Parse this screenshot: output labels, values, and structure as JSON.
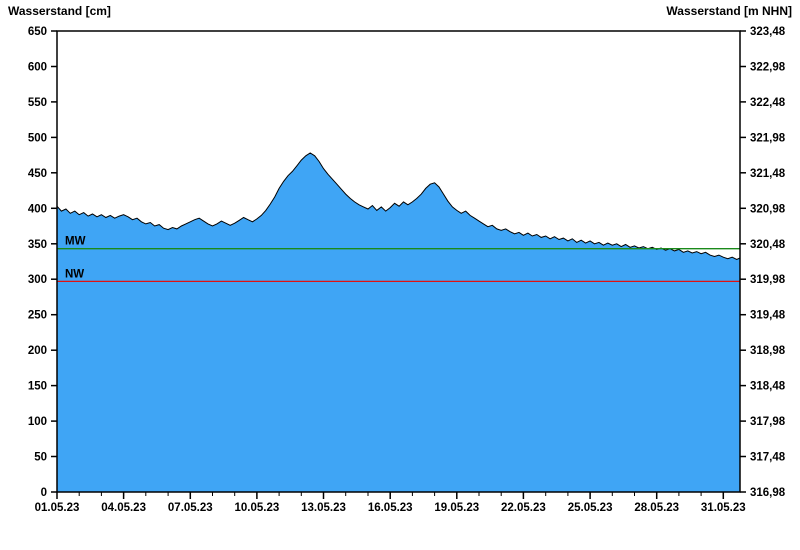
{
  "header": {
    "left_title": "Wasserstand [cm]",
    "right_title": "Wasserstand [m NHN]"
  },
  "chart_data": {
    "type": "area",
    "title": "",
    "xlabel": "",
    "ylabel_left": "Wasserstand [cm]",
    "ylabel_right": "Wasserstand [m NHN]",
    "grid": false,
    "legend": "none",
    "colors": {
      "fill": "#3FA5F5",
      "stroke": "#000000",
      "axis": "#000000",
      "mw_line": "#1a8a1a",
      "nw_line": "#e01212"
    },
    "x_axis": {
      "range_days": [
        1,
        31.75
      ],
      "tick_days": [
        1,
        4,
        7,
        10,
        13,
        16,
        19,
        22,
        25,
        28,
        31
      ],
      "tick_labels": [
        "01.05.23",
        "04.05.23",
        "07.05.23",
        "10.05.23",
        "13.05.23",
        "16.05.23",
        "19.05.23",
        "22.05.23",
        "25.05.23",
        "28.05.23",
        "31.05.23"
      ],
      "minor_tick_step_days": 1
    },
    "left_axis": {
      "range": [
        0,
        650
      ],
      "ticks": [
        0,
        50,
        100,
        150,
        200,
        250,
        300,
        350,
        400,
        450,
        500,
        550,
        600,
        650
      ]
    },
    "right_axis": {
      "range": [
        316.98,
        323.48
      ],
      "tick_labels": [
        "316,98",
        "317,48",
        "317,98",
        "318,48",
        "318,98",
        "319,48",
        "319,98",
        "320,48",
        "320,98",
        "321,48",
        "321,98",
        "322,48",
        "322,98",
        "323,48"
      ]
    },
    "reference_lines": [
      {
        "name": "MW",
        "value_cm": 343,
        "color": "#1a8a1a"
      },
      {
        "name": "NW",
        "value_cm": 297,
        "color": "#e01212"
      }
    ],
    "series": [
      {
        "name": "Wasserstand",
        "unit": "cm",
        "points": [
          [
            1,
            403
          ],
          [
            1.2,
            396
          ],
          [
            1.4,
            399
          ],
          [
            1.6,
            393
          ],
          [
            1.8,
            396
          ],
          [
            2,
            391
          ],
          [
            2.2,
            394
          ],
          [
            2.4,
            389
          ],
          [
            2.6,
            392
          ],
          [
            2.8,
            388
          ],
          [
            3,
            391
          ],
          [
            3.2,
            387
          ],
          [
            3.4,
            390
          ],
          [
            3.6,
            386
          ],
          [
            3.8,
            389
          ],
          [
            4,
            391
          ],
          [
            4.2,
            388
          ],
          [
            4.4,
            384
          ],
          [
            4.6,
            386
          ],
          [
            4.8,
            381
          ],
          [
            5,
            378
          ],
          [
            5.2,
            380
          ],
          [
            5.4,
            375
          ],
          [
            5.6,
            377
          ],
          [
            5.8,
            372
          ],
          [
            6,
            370
          ],
          [
            6.2,
            373
          ],
          [
            6.4,
            371
          ],
          [
            6.6,
            375
          ],
          [
            6.8,
            378
          ],
          [
            7,
            381
          ],
          [
            7.2,
            384
          ],
          [
            7.4,
            386
          ],
          [
            7.6,
            382
          ],
          [
            7.8,
            378
          ],
          [
            8,
            375
          ],
          [
            8.2,
            378
          ],
          [
            8.4,
            382
          ],
          [
            8.6,
            379
          ],
          [
            8.8,
            376
          ],
          [
            9,
            379
          ],
          [
            9.2,
            383
          ],
          [
            9.4,
            387
          ],
          [
            9.6,
            384
          ],
          [
            9.8,
            381
          ],
          [
            10,
            385
          ],
          [
            10.2,
            390
          ],
          [
            10.4,
            397
          ],
          [
            10.6,
            406
          ],
          [
            10.8,
            416
          ],
          [
            11,
            428
          ],
          [
            11.2,
            438
          ],
          [
            11.4,
            446
          ],
          [
            11.6,
            452
          ],
          [
            11.8,
            460
          ],
          [
            12,
            468
          ],
          [
            12.2,
            474
          ],
          [
            12.4,
            478
          ],
          [
            12.6,
            474
          ],
          [
            12.8,
            466
          ],
          [
            13,
            456
          ],
          [
            13.2,
            448
          ],
          [
            13.4,
            441
          ],
          [
            13.6,
            434
          ],
          [
            13.8,
            427
          ],
          [
            14,
            420
          ],
          [
            14.2,
            414
          ],
          [
            14.4,
            409
          ],
          [
            14.6,
            405
          ],
          [
            14.8,
            402
          ],
          [
            15,
            399
          ],
          [
            15.2,
            404
          ],
          [
            15.4,
            397
          ],
          [
            15.6,
            402
          ],
          [
            15.8,
            396
          ],
          [
            16,
            401
          ],
          [
            16.2,
            407
          ],
          [
            16.4,
            403
          ],
          [
            16.6,
            409
          ],
          [
            16.8,
            405
          ],
          [
            17,
            409
          ],
          [
            17.2,
            414
          ],
          [
            17.4,
            420
          ],
          [
            17.6,
            428
          ],
          [
            17.8,
            434
          ],
          [
            18,
            436
          ],
          [
            18.2,
            430
          ],
          [
            18.4,
            420
          ],
          [
            18.6,
            410
          ],
          [
            18.8,
            402
          ],
          [
            19,
            397
          ],
          [
            19.2,
            393
          ],
          [
            19.4,
            396
          ],
          [
            19.6,
            390
          ],
          [
            19.8,
            386
          ],
          [
            20,
            382
          ],
          [
            20.2,
            378
          ],
          [
            20.4,
            374
          ],
          [
            20.6,
            376
          ],
          [
            20.8,
            371
          ],
          [
            21,
            369
          ],
          [
            21.2,
            371
          ],
          [
            21.4,
            367
          ],
          [
            21.6,
            364
          ],
          [
            21.8,
            366
          ],
          [
            22,
            362
          ],
          [
            22.2,
            365
          ],
          [
            22.4,
            361
          ],
          [
            22.6,
            363
          ],
          [
            22.8,
            359
          ],
          [
            23,
            361
          ],
          [
            23.2,
            357
          ],
          [
            23.4,
            360
          ],
          [
            23.6,
            356
          ],
          [
            23.8,
            358
          ],
          [
            24,
            354
          ],
          [
            24.2,
            357
          ],
          [
            24.4,
            352
          ],
          [
            24.6,
            355
          ],
          [
            24.8,
            351
          ],
          [
            25,
            354
          ],
          [
            25.2,
            350
          ],
          [
            25.4,
            352
          ],
          [
            25.6,
            348
          ],
          [
            25.8,
            351
          ],
          [
            26,
            348
          ],
          [
            26.2,
            350
          ],
          [
            26.4,
            346
          ],
          [
            26.6,
            349
          ],
          [
            26.8,
            345
          ],
          [
            27,
            347
          ],
          [
            27.2,
            344
          ],
          [
            27.4,
            346
          ],
          [
            27.6,
            343
          ],
          [
            27.8,
            345
          ],
          [
            28,
            342
          ],
          [
            28.2,
            344
          ],
          [
            28.4,
            341
          ],
          [
            28.6,
            343
          ],
          [
            28.8,
            340
          ],
          [
            29,
            342
          ],
          [
            29.2,
            338
          ],
          [
            29.4,
            340
          ],
          [
            29.6,
            337
          ],
          [
            29.8,
            339
          ],
          [
            30,
            336
          ],
          [
            30.2,
            338
          ],
          [
            30.4,
            334
          ],
          [
            30.6,
            332
          ],
          [
            30.8,
            334
          ],
          [
            31,
            331
          ],
          [
            31.2,
            329
          ],
          [
            31.4,
            331
          ],
          [
            31.6,
            328
          ],
          [
            31.75,
            330
          ]
        ]
      }
    ]
  }
}
